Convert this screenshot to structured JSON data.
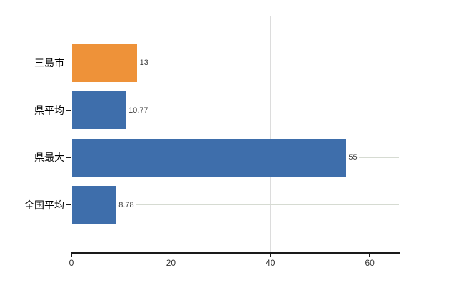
{
  "chart": {
    "background": "#ffffff",
    "axis_color": "#1a1a1a",
    "vertical_gridline_color": "#dcdcdc",
    "horizontal_gridline_color": "#d6dbd2",
    "top_border_color": "#c8ccc8",
    "category_label_color": "#000000",
    "value_label_color": "#3d3d3d",
    "tick_label_color": "#333333"
  },
  "chart_data": {
    "type": "bar",
    "orientation": "horizontal",
    "categories": [
      "三島市",
      "県平均",
      "県最大",
      "全国平均"
    ],
    "values": [
      13,
      10.77,
      55,
      8.78
    ],
    "value_labels": [
      "13",
      "10.77",
      "55",
      "8.78"
    ],
    "bar_colors": [
      "#ee9239",
      "#3e6eab",
      "#3e6eab",
      "#3e6eab"
    ],
    "highlight_category": "三島市",
    "highlight_color": "#ee9239",
    "default_bar_color": "#3e6eab",
    "xlim": [
      0,
      66
    ],
    "x_ticks": [
      0,
      20,
      40,
      60
    ],
    "x_tick_labels": [
      "0",
      "20",
      "40",
      "60"
    ],
    "grid": true,
    "legend": false,
    "title": ""
  }
}
